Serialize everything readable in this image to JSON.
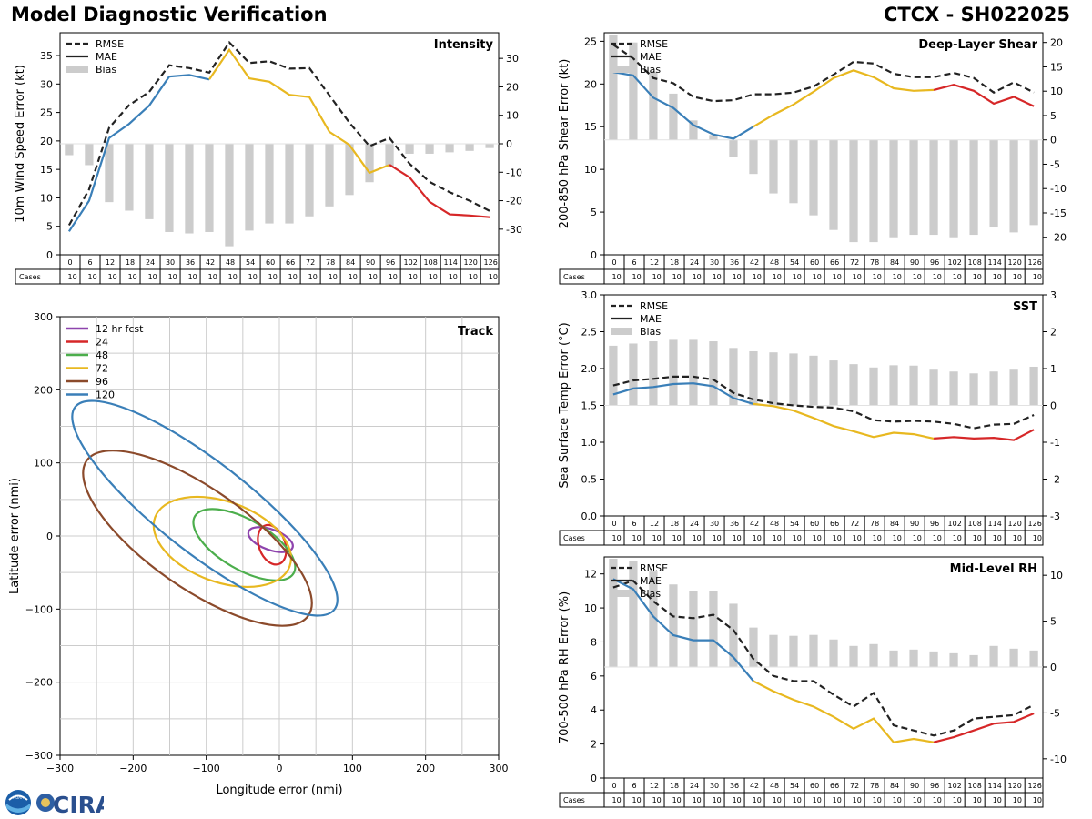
{
  "header": {
    "title": "Model Diagnostic Verification",
    "storm": "CTCX - SH022025"
  },
  "logos": {
    "noaa": "NOAA",
    "cira": "CIRA"
  },
  "colors": {
    "rmse": "#222222",
    "mae_early": "#3a7fb8",
    "mae_mid": "#e8b820",
    "mae_late": "#d62728",
    "bias": "#cccccc",
    "grid": "#cccccc"
  },
  "legend_labels": {
    "rmse": "RMSE",
    "mae": "MAE",
    "bias": "Bias"
  },
  "cases_label": "Cases",
  "chart_data": [
    {
      "id": "intensity",
      "type": "line",
      "title": "Intensity",
      "ylabel": "10m Wind Speed Error (kt)",
      "ylim": [
        0,
        39
      ],
      "yticks": [
        0,
        5,
        10,
        15,
        20,
        25,
        30,
        35
      ],
      "y2lim": [
        -39,
        39
      ],
      "y2ticks": [
        -30,
        -20,
        -10,
        0,
        10,
        20,
        30
      ],
      "bias_base": 0,
      "forecast_hours": [
        0,
        6,
        12,
        18,
        24,
        30,
        36,
        42,
        48,
        54,
        60,
        66,
        72,
        78,
        84,
        90,
        96,
        102,
        108,
        114,
        120,
        126
      ],
      "cases": [
        10,
        10,
        10,
        10,
        10,
        10,
        10,
        10,
        10,
        10,
        10,
        10,
        10,
        10,
        10,
        10,
        10,
        10,
        10,
        10,
        10,
        10
      ],
      "rmse": [
        5.2,
        11.5,
        22.3,
        26.3,
        28.6,
        33.3,
        32.8,
        32.0,
        37.3,
        33.7,
        34.0,
        32.7,
        32.8,
        28.0,
        23.2,
        19.1,
        20.5,
        16.0,
        12.8,
        11.0,
        9.5,
        7.7
      ],
      "mae": [
        4.1,
        9.5,
        20.5,
        23.0,
        26.2,
        31.3,
        31.6,
        30.8,
        36.0,
        31.0,
        30.4,
        28.1,
        27.7,
        21.6,
        19.3,
        14.4,
        15.8,
        13.6,
        9.3,
        7.1,
        6.9,
        6.6
      ],
      "bias": [
        -4,
        -7.5,
        -20.5,
        -23.5,
        -26.5,
        -31,
        -31.5,
        -31,
        -36,
        -30.5,
        -28,
        -28,
        -25.5,
        -22,
        -18,
        -13.5,
        -8,
        -3.5,
        -3.5,
        -3,
        -2.5,
        -1.5
      ],
      "mae_color_breaks": [
        42,
        96
      ]
    },
    {
      "id": "shear",
      "type": "line",
      "title": "Deep-Layer Shear",
      "ylabel": "200-850 hPa Shear Error (kt)",
      "ylim": [
        0,
        26
      ],
      "yticks": [
        0,
        5,
        10,
        15,
        20,
        25
      ],
      "y2lim": [
        -23.6,
        22
      ],
      "y2ticks": [
        -20,
        -15,
        -10,
        -5,
        0,
        5,
        10,
        15,
        20
      ],
      "bias_base": 0,
      "forecast_hours": [
        0,
        6,
        12,
        18,
        24,
        30,
        36,
        42,
        48,
        54,
        60,
        66,
        72,
        78,
        84,
        90,
        96,
        102,
        108,
        114,
        120,
        126
      ],
      "cases": [
        10,
        10,
        10,
        10,
        10,
        10,
        10,
        10,
        10,
        10,
        10,
        10,
        10,
        10,
        10,
        10,
        10,
        10,
        10,
        10,
        10,
        10
      ],
      "rmse": [
        24.6,
        23.0,
        20.7,
        20.1,
        18.5,
        18.0,
        18.1,
        18.8,
        18.8,
        19.0,
        19.7,
        21.1,
        22.6,
        22.4,
        21.2,
        20.8,
        20.8,
        21.3,
        20.7,
        19.0,
        20.2,
        19.0
      ],
      "mae": [
        21.4,
        21.0,
        18.4,
        17.2,
        15.2,
        14.1,
        13.6,
        15.0,
        16.4,
        17.6,
        19.1,
        20.7,
        21.6,
        20.8,
        19.5,
        19.2,
        19.3,
        19.9,
        19.2,
        17.7,
        18.5,
        17.4
      ],
      "bias": [
        21.5,
        20,
        14,
        9.5,
        4,
        1,
        -3.5,
        -7,
        -11,
        -13,
        -15.5,
        -18.5,
        -21,
        -21,
        -20,
        -19.5,
        -19.5,
        -20,
        -19.5,
        -18,
        -19,
        -17.5
      ],
      "mae_color_breaks": [
        42,
        96
      ]
    },
    {
      "id": "sst",
      "type": "line",
      "title": "SST",
      "ylabel": "Sea Surface Temp Error (°C)",
      "ylim": [
        0,
        3
      ],
      "yticks": [
        0.0,
        0.5,
        1.0,
        1.5,
        2.0,
        2.5,
        3.0
      ],
      "y2lim": [
        -3,
        3
      ],
      "y2ticks": [
        -3,
        -2,
        -1,
        0,
        1,
        2,
        3
      ],
      "bias_base": 0,
      "forecast_hours": [
        0,
        6,
        12,
        18,
        24,
        30,
        36,
        42,
        48,
        54,
        60,
        66,
        72,
        78,
        84,
        90,
        96,
        102,
        108,
        114,
        120,
        126
      ],
      "cases": [
        10,
        10,
        10,
        10,
        10,
        10,
        10,
        10,
        10,
        10,
        10,
        10,
        10,
        10,
        10,
        10,
        10,
        10,
        10,
        10,
        10,
        10
      ],
      "rmse": [
        1.77,
        1.84,
        1.86,
        1.89,
        1.89,
        1.85,
        1.67,
        1.58,
        1.53,
        1.5,
        1.48,
        1.47,
        1.42,
        1.3,
        1.28,
        1.29,
        1.28,
        1.25,
        1.19,
        1.24,
        1.25,
        1.37
      ],
      "mae": [
        1.65,
        1.73,
        1.75,
        1.79,
        1.8,
        1.76,
        1.6,
        1.52,
        1.49,
        1.43,
        1.33,
        1.22,
        1.15,
        1.07,
        1.13,
        1.11,
        1.05,
        1.07,
        1.05,
        1.06,
        1.03,
        1.17
      ],
      "bias": [
        1.62,
        1.68,
        1.74,
        1.78,
        1.78,
        1.74,
        1.56,
        1.47,
        1.44,
        1.41,
        1.35,
        1.22,
        1.12,
        1.03,
        1.09,
        1.08,
        0.97,
        0.92,
        0.87,
        0.92,
        0.97,
        1.05
      ],
      "mae_color_breaks": [
        42,
        96
      ]
    },
    {
      "id": "rh",
      "type": "line",
      "title": "Mid-Level RH",
      "ylabel": "700-500 hPa RH Error (%)",
      "ylim": [
        0,
        13
      ],
      "yticks": [
        0,
        2,
        4,
        6,
        8,
        10,
        12
      ],
      "y2lim": [
        -12.1,
        12
      ],
      "y2ticks": [
        -10,
        -5,
        0,
        5,
        10
      ],
      "bias_base": 0,
      "forecast_hours": [
        0,
        6,
        12,
        18,
        24,
        30,
        36,
        42,
        48,
        54,
        60,
        66,
        72,
        78,
        84,
        90,
        96,
        102,
        108,
        114,
        120,
        126
      ],
      "cases": [
        10,
        10,
        10,
        10,
        10,
        10,
        10,
        10,
        10,
        10,
        10,
        10,
        10,
        10,
        10,
        10,
        10,
        10,
        10,
        10,
        10,
        10
      ],
      "rmse": [
        11.2,
        11.6,
        10.4,
        9.5,
        9.4,
        9.6,
        8.7,
        7.0,
        6.0,
        5.7,
        5.7,
        4.9,
        4.2,
        5.0,
        3.1,
        2.8,
        2.5,
        2.8,
        3.5,
        3.6,
        3.7,
        4.3
      ],
      "mae": [
        11.7,
        11.1,
        9.5,
        8.4,
        8.1,
        8.1,
        7.1,
        5.7,
        5.1,
        4.6,
        4.2,
        3.6,
        2.9,
        3.5,
        2.1,
        2.3,
        2.1,
        2.4,
        2.8,
        3.2,
        3.3,
        3.8
      ],
      "bias": [
        11.8,
        11.6,
        10.4,
        9.0,
        8.3,
        8.3,
        6.9,
        4.3,
        3.5,
        3.4,
        3.5,
        3.0,
        2.3,
        2.5,
        1.8,
        1.9,
        1.7,
        1.5,
        1.3,
        2.3,
        2.0,
        1.8
      ],
      "mae_color_breaks": [
        42,
        96
      ]
    },
    {
      "id": "track",
      "type": "ellipse",
      "title": "Track",
      "xlabel": "Longitude error (nmi)",
      "ylabel": "Latitude error (nmi)",
      "xlim": [
        -300,
        300
      ],
      "ylim": [
        -300,
        300
      ],
      "xticks": [
        -300,
        -200,
        -100,
        0,
        100,
        200,
        300
      ],
      "yticks": [
        -300,
        -200,
        -100,
        0,
        100,
        200,
        300
      ],
      "legend_title": "12 hr fcst",
      "ellipses": [
        {
          "label": "12 hr fcst",
          "color": "#8e44ad",
          "cx": -12,
          "cy": -5,
          "a": 32,
          "b": 14,
          "angle": -20
        },
        {
          "label": "24",
          "color": "#d62728",
          "cx": -10,
          "cy": -12,
          "a": 28,
          "b": 18,
          "angle": -70
        },
        {
          "label": "48",
          "color": "#4cae4c",
          "cx": -48,
          "cy": -12,
          "a": 78,
          "b": 34,
          "angle": -30
        },
        {
          "label": "72",
          "color": "#e8b820",
          "cx": -78,
          "cy": -8,
          "a": 98,
          "b": 55,
          "angle": -20
        },
        {
          "label": "96",
          "color": "#8b4a2b",
          "cx": -112,
          "cy": -3,
          "a": 185,
          "b": 68,
          "angle": -35
        },
        {
          "label": "120",
          "color": "#3a7fb8",
          "cx": -102,
          "cy": 38,
          "a": 225,
          "b": 62,
          "angle": -38
        }
      ]
    }
  ]
}
